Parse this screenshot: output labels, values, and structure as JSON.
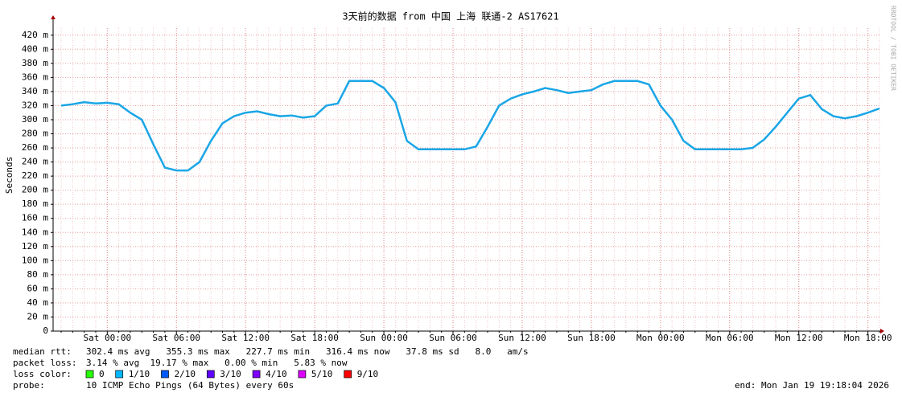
{
  "chart_data": {
    "type": "line",
    "title": "3天前的数据 from 中国 上海 联通-2 AS17621",
    "y_label": "Seconds",
    "watermark": "RRDTOOL / TOBI OETIKER",
    "categories": [
      null,
      null,
      null,
      null,
      "Sat 00:00",
      null,
      null,
      null,
      null,
      null,
      "Sat 06:00",
      null,
      null,
      null,
      null,
      null,
      "Sat 12:00",
      null,
      null,
      null,
      null,
      null,
      "Sat 18:00",
      null,
      null,
      null,
      null,
      null,
      "Sun 00:00",
      null,
      null,
      null,
      null,
      null,
      "Sun 06:00",
      null,
      null,
      null,
      null,
      null,
      "Sun 12:00",
      null,
      null,
      null,
      null,
      null,
      "Sun 18:00",
      null,
      null,
      null,
      null,
      null,
      "Mon 00:00",
      null,
      null,
      null,
      null,
      null,
      "Mon 06:00",
      null,
      null,
      null,
      null,
      null,
      "Mon 12:00",
      null,
      null,
      null,
      null,
      null,
      "Mon 18:00",
      null
    ],
    "series": [
      {
        "color": "#1aa6e6",
        "values": [
          0.32,
          0.322,
          0.325,
          0.323,
          0.324,
          0.322,
          0.31,
          0.3,
          0.265,
          0.232,
          0.228,
          0.228,
          0.24,
          0.27,
          0.295,
          0.305,
          0.31,
          0.312,
          0.308,
          0.305,
          0.306,
          0.303,
          0.305,
          0.32,
          0.323,
          0.355,
          0.355,
          0.355,
          0.345,
          0.325,
          0.27,
          0.258,
          0.258,
          0.258,
          0.258,
          0.258,
          0.262,
          0.29,
          0.32,
          0.33,
          0.336,
          0.34,
          0.345,
          0.342,
          0.338,
          0.34,
          0.342,
          0.35,
          0.355,
          0.355,
          0.355,
          0.35,
          0.32,
          0.3,
          0.27,
          0.258,
          0.258,
          0.258,
          0.258,
          0.258,
          0.26,
          0.272,
          0.29,
          0.31,
          0.33,
          0.335,
          0.315,
          0.305,
          0.302,
          0.305,
          0.31,
          0.316
        ]
      }
    ],
    "ylim": [
      0,
      0.43
    ],
    "yticks": [
      0,
      {
        "value": 0.02,
        "label": "20 m"
      },
      {
        "value": 0.04,
        "label": "40 m"
      },
      {
        "value": 0.06,
        "label": "60 m"
      },
      {
        "value": 0.08,
        "label": "80 m"
      },
      {
        "value": 0.1,
        "label": "100 m"
      },
      {
        "value": 0.12,
        "label": "120 m"
      },
      {
        "value": 0.14,
        "label": "140 m"
      },
      {
        "value": 0.16,
        "label": "160 m"
      },
      {
        "value": 0.18,
        "label": "180 m"
      },
      {
        "value": 0.2,
        "label": "200 m"
      },
      {
        "value": 0.22,
        "label": "220 m"
      },
      {
        "value": 0.24,
        "label": "240 m"
      },
      {
        "value": 0.26,
        "label": "260 m"
      },
      {
        "value": 0.28,
        "label": "280 m"
      },
      {
        "value": 0.3,
        "label": "300 m"
      },
      {
        "value": 0.32,
        "label": "320 m"
      },
      {
        "value": 0.34,
        "label": "340 m"
      },
      {
        "value": 0.36,
        "label": "360 m"
      },
      {
        "value": 0.38,
        "label": "380 m"
      },
      {
        "value": 0.4,
        "label": "400 m"
      },
      {
        "value": 0.42,
        "label": "420 m"
      }
    ],
    "grid": true,
    "stats": [
      {
        "label": "median rtt:",
        "text": "302.4 ms avg   355.3 ms max   227.7 ms min   316.4 ms now   37.8 ms sd   8.0   am/s"
      },
      {
        "label": "packet loss:",
        "text": "3.14 % avg  19.17 % max   0.00 % min   5.83 % now"
      }
    ],
    "loss_color_label": "loss color:",
    "loss_colors": [
      {
        "label": "0",
        "color": "#26ff00"
      },
      {
        "label": "1/10",
        "color": "#00b8ff"
      },
      {
        "label": "2/10",
        "color": "#0059ff"
      },
      {
        "label": "3/10",
        "color": "#5e00ff"
      },
      {
        "label": "4/10",
        "color": "#7e00ff"
      },
      {
        "label": "5/10",
        "color": "#dd00ff"
      },
      {
        "label": "9/10",
        "color": "#ff0000"
      }
    ],
    "probe": {
      "label": "probe:",
      "text": "10 ICMP Echo Pings (64 Bytes) every 60s"
    },
    "end": "end: Mon Jan 19 19:18:04 2026"
  }
}
